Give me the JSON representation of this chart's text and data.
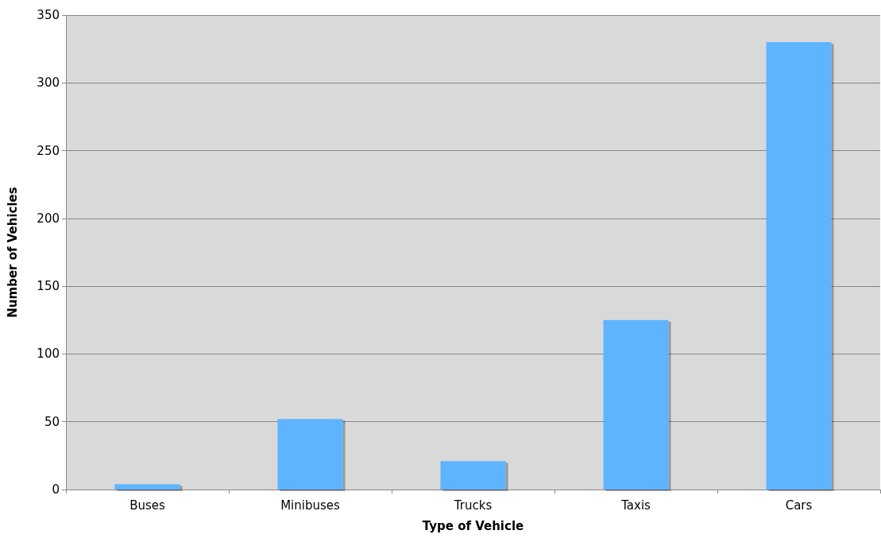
{
  "chart_data": {
    "type": "bar",
    "xlabel": "Type of Vehicle",
    "ylabel": "Number of Vehicles",
    "categories": [
      "Buses",
      "Minibuses",
      "Trucks",
      "Taxis",
      "Cars"
    ],
    "values": [
      4,
      52,
      21,
      125,
      330
    ],
    "color": "#5fb4ff",
    "ylim": [
      0,
      350
    ],
    "yticks": [
      0,
      50,
      100,
      150,
      200,
      250,
      300,
      350
    ],
    "grid": "y"
  }
}
